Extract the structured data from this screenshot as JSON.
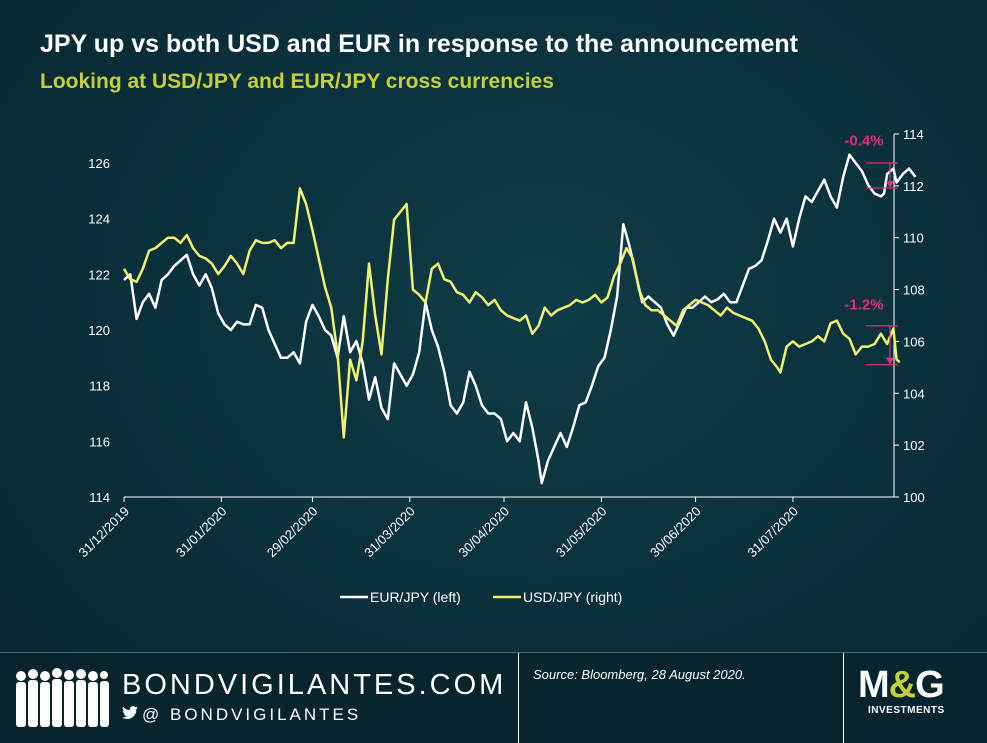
{
  "header": {
    "title": "JPY up vs both USD and EUR in response to the announcement",
    "subtitle": "Looking at USD/JPY and EUR/JPY cross currencies"
  },
  "chart_data": {
    "type": "line",
    "x_tick_labels": [
      "31/12/2019",
      "31/01/2020",
      "29/02/2020",
      "31/03/2020",
      "30/04/2020",
      "31/05/2020",
      "30/06/2020",
      "31/07/2020"
    ],
    "x_tick_positions": [
      0,
      31,
      60,
      91,
      121,
      152,
      182,
      213
    ],
    "x_range": [
      0,
      242
    ],
    "left_axis": {
      "ticks": [
        114,
        116,
        118,
        120,
        122,
        124,
        126
      ],
      "ylim": [
        114,
        127
      ]
    },
    "right_axis": {
      "ticks": [
        100,
        102,
        104,
        106,
        108,
        110,
        112,
        114
      ],
      "ylim": [
        100,
        114
      ]
    },
    "series": [
      {
        "name": "EUR/JPY (left)",
        "axis": "left",
        "color": "#ffffff",
        "points": [
          [
            0,
            121.8
          ],
          [
            2,
            122.0
          ],
          [
            4,
            120.4
          ],
          [
            6,
            121.0
          ],
          [
            8,
            121.3
          ],
          [
            10,
            120.8
          ],
          [
            12,
            121.8
          ],
          [
            14,
            122.0
          ],
          [
            16,
            122.3
          ],
          [
            18,
            122.5
          ],
          [
            20,
            122.7
          ],
          [
            22,
            122.0
          ],
          [
            24,
            121.6
          ],
          [
            26,
            122.0
          ],
          [
            28,
            121.5
          ],
          [
            30,
            120.6
          ],
          [
            32,
            120.2
          ],
          [
            34,
            120.0
          ],
          [
            36,
            120.3
          ],
          [
            38,
            120.2
          ],
          [
            40,
            120.2
          ],
          [
            42,
            120.9
          ],
          [
            44,
            120.8
          ],
          [
            46,
            120.0
          ],
          [
            48,
            119.5
          ],
          [
            50,
            119.0
          ],
          [
            52,
            119.0
          ],
          [
            54,
            119.2
          ],
          [
            56,
            118.8
          ],
          [
            58,
            120.3
          ],
          [
            60,
            120.9
          ],
          [
            62,
            120.5
          ],
          [
            64,
            120.0
          ],
          [
            66,
            119.8
          ],
          [
            68,
            119.0
          ],
          [
            70,
            120.5
          ],
          [
            72,
            119.2
          ],
          [
            74,
            119.6
          ],
          [
            76,
            118.8
          ],
          [
            78,
            117.5
          ],
          [
            80,
            118.3
          ],
          [
            82,
            117.2
          ],
          [
            84,
            116.8
          ],
          [
            86,
            118.8
          ],
          [
            88,
            118.4
          ],
          [
            90,
            118.0
          ],
          [
            92,
            118.4
          ],
          [
            94,
            119.2
          ],
          [
            96,
            121.0
          ],
          [
            98,
            120.0
          ],
          [
            100,
            119.4
          ],
          [
            102,
            118.5
          ],
          [
            104,
            117.3
          ],
          [
            106,
            117.0
          ],
          [
            108,
            117.4
          ],
          [
            110,
            118.5
          ],
          [
            112,
            118.0
          ],
          [
            114,
            117.3
          ],
          [
            116,
            117.0
          ],
          [
            118,
            117.0
          ],
          [
            120,
            116.8
          ],
          [
            122,
            116.0
          ],
          [
            124,
            116.3
          ],
          [
            126,
            116.0
          ],
          [
            128,
            117.4
          ],
          [
            130,
            116.5
          ],
          [
            132,
            115.3
          ],
          [
            133,
            114.5
          ],
          [
            135,
            115.3
          ],
          [
            137,
            115.8
          ],
          [
            139,
            116.3
          ],
          [
            141,
            115.8
          ],
          [
            143,
            116.5
          ],
          [
            145,
            117.3
          ],
          [
            147,
            117.4
          ],
          [
            149,
            118.0
          ],
          [
            151,
            118.7
          ],
          [
            153,
            119.0
          ],
          [
            155,
            120.0
          ],
          [
            157,
            121.2
          ],
          [
            159,
            123.8
          ],
          [
            161,
            123.0
          ],
          [
            163,
            122.0
          ],
          [
            165,
            121.0
          ],
          [
            167,
            121.2
          ],
          [
            169,
            121.0
          ],
          [
            171,
            120.8
          ],
          [
            173,
            120.2
          ],
          [
            175,
            119.8
          ],
          [
            177,
            120.3
          ],
          [
            179,
            120.8
          ],
          [
            181,
            120.8
          ],
          [
            183,
            121.0
          ],
          [
            185,
            121.2
          ],
          [
            187,
            121.0
          ],
          [
            189,
            121.1
          ],
          [
            191,
            121.3
          ],
          [
            193,
            121.0
          ],
          [
            195,
            121.0
          ],
          [
            197,
            121.6
          ],
          [
            199,
            122.2
          ],
          [
            201,
            122.3
          ],
          [
            203,
            122.5
          ],
          [
            205,
            123.2
          ],
          [
            207,
            124.0
          ],
          [
            209,
            123.5
          ],
          [
            211,
            124.0
          ],
          [
            213,
            123.0
          ],
          [
            215,
            124.0
          ],
          [
            217,
            124.8
          ],
          [
            219,
            124.6
          ],
          [
            221,
            125.0
          ],
          [
            223,
            125.4
          ],
          [
            225,
            124.8
          ],
          [
            227,
            124.4
          ],
          [
            229,
            125.5
          ],
          [
            231,
            126.3
          ],
          [
            233,
            126.0
          ],
          [
            235,
            125.7
          ],
          [
            237,
            125.2
          ],
          [
            239,
            124.9
          ],
          [
            241,
            124.8
          ],
          [
            242,
            124.9
          ],
          [
            243,
            125.6
          ],
          [
            245,
            125.8
          ],
          [
            246,
            125.3
          ],
          [
            248,
            125.6
          ],
          [
            250,
            125.8
          ],
          [
            252,
            125.5
          ]
        ]
      },
      {
        "name": "USD/JPY (right)",
        "axis": "right",
        "color": "#f0f070",
        "points": [
          [
            0,
            108.8
          ],
          [
            2,
            108.4
          ],
          [
            4,
            108.3
          ],
          [
            6,
            108.8
          ],
          [
            8,
            109.5
          ],
          [
            10,
            109.6
          ],
          [
            12,
            109.8
          ],
          [
            14,
            110.0
          ],
          [
            16,
            110.0
          ],
          [
            18,
            109.8
          ],
          [
            20,
            110.1
          ],
          [
            22,
            109.6
          ],
          [
            24,
            109.3
          ],
          [
            26,
            109.2
          ],
          [
            28,
            109.0
          ],
          [
            30,
            108.6
          ],
          [
            32,
            108.9
          ],
          [
            34,
            109.3
          ],
          [
            36,
            109.0
          ],
          [
            38,
            108.6
          ],
          [
            40,
            109.5
          ],
          [
            42,
            109.9
          ],
          [
            44,
            109.8
          ],
          [
            46,
            109.8
          ],
          [
            48,
            109.9
          ],
          [
            50,
            109.6
          ],
          [
            52,
            109.8
          ],
          [
            54,
            109.8
          ],
          [
            56,
            111.9
          ],
          [
            58,
            111.3
          ],
          [
            60,
            110.3
          ],
          [
            62,
            109.2
          ],
          [
            64,
            108.1
          ],
          [
            66,
            107.3
          ],
          [
            68,
            105.5
          ],
          [
            70,
            102.3
          ],
          [
            72,
            105.3
          ],
          [
            74,
            104.5
          ],
          [
            76,
            106.0
          ],
          [
            78,
            109.0
          ],
          [
            80,
            107.0
          ],
          [
            82,
            105.5
          ],
          [
            84,
            108.4
          ],
          [
            86,
            110.7
          ],
          [
            88,
            111.0
          ],
          [
            90,
            111.3
          ],
          [
            92,
            108.0
          ],
          [
            94,
            107.8
          ],
          [
            96,
            107.5
          ],
          [
            98,
            108.8
          ],
          [
            100,
            109.0
          ],
          [
            102,
            108.4
          ],
          [
            104,
            108.3
          ],
          [
            106,
            107.9
          ],
          [
            108,
            107.8
          ],
          [
            110,
            107.5
          ],
          [
            112,
            107.9
          ],
          [
            114,
            107.7
          ],
          [
            116,
            107.4
          ],
          [
            118,
            107.6
          ],
          [
            120,
            107.2
          ],
          [
            122,
            107.0
          ],
          [
            124,
            106.9
          ],
          [
            126,
            106.8
          ],
          [
            128,
            107.0
          ],
          [
            130,
            106.3
          ],
          [
            132,
            106.6
          ],
          [
            134,
            107.3
          ],
          [
            136,
            107.0
          ],
          [
            138,
            107.2
          ],
          [
            140,
            107.3
          ],
          [
            142,
            107.4
          ],
          [
            144,
            107.6
          ],
          [
            146,
            107.5
          ],
          [
            148,
            107.6
          ],
          [
            150,
            107.8
          ],
          [
            152,
            107.5
          ],
          [
            154,
            107.7
          ],
          [
            156,
            108.5
          ],
          [
            158,
            109.0
          ],
          [
            160,
            109.6
          ],
          [
            162,
            109.2
          ],
          [
            164,
            108.0
          ],
          [
            166,
            107.4
          ],
          [
            168,
            107.2
          ],
          [
            170,
            107.2
          ],
          [
            172,
            107.0
          ],
          [
            174,
            106.8
          ],
          [
            176,
            106.6
          ],
          [
            178,
            107.2
          ],
          [
            180,
            107.4
          ],
          [
            182,
            107.6
          ],
          [
            184,
            107.5
          ],
          [
            186,
            107.4
          ],
          [
            188,
            107.2
          ],
          [
            190,
            107.0
          ],
          [
            192,
            107.3
          ],
          [
            194,
            107.1
          ],
          [
            196,
            107.0
          ],
          [
            198,
            106.9
          ],
          [
            200,
            106.8
          ],
          [
            202,
            106.5
          ],
          [
            204,
            106.0
          ],
          [
            206,
            105.3
          ],
          [
            208,
            105.0
          ],
          [
            209,
            104.8
          ],
          [
            211,
            105.8
          ],
          [
            213,
            106.0
          ],
          [
            215,
            105.8
          ],
          [
            217,
            105.9
          ],
          [
            219,
            106.0
          ],
          [
            221,
            106.2
          ],
          [
            223,
            106.0
          ],
          [
            225,
            106.7
          ],
          [
            227,
            106.8
          ],
          [
            229,
            106.3
          ],
          [
            231,
            106.1
          ],
          [
            233,
            105.5
          ],
          [
            235,
            105.8
          ],
          [
            237,
            105.8
          ],
          [
            239,
            105.9
          ],
          [
            241,
            106.3
          ],
          [
            243,
            105.9
          ],
          [
            245,
            106.5
          ],
          [
            246,
            105.3
          ],
          [
            247,
            105.2
          ]
        ]
      }
    ],
    "annotations": [
      {
        "text": "-0.4%",
        "axis": "left",
        "y_from": 126.0,
        "y_to": 125.1,
        "label_y": 126.6
      },
      {
        "text": "-1.2%",
        "axis": "right",
        "y_from": 106.6,
        "y_to": 105.1,
        "label_y": 107.2
      }
    ],
    "legend": {
      "placement": "bottom-center"
    },
    "grid": false
  },
  "footer": {
    "brand": "BONDVIGILANTES.COM",
    "handle": "@ BONDVIGILANTES",
    "twitter_icon": "twitter-bird-icon",
    "source": "Source: Bloomberg, 28 August 2020.",
    "logo_main_left": "M",
    "logo_amp": "&",
    "logo_main_right": "G",
    "logo_sub": "INVESTMENTS"
  }
}
